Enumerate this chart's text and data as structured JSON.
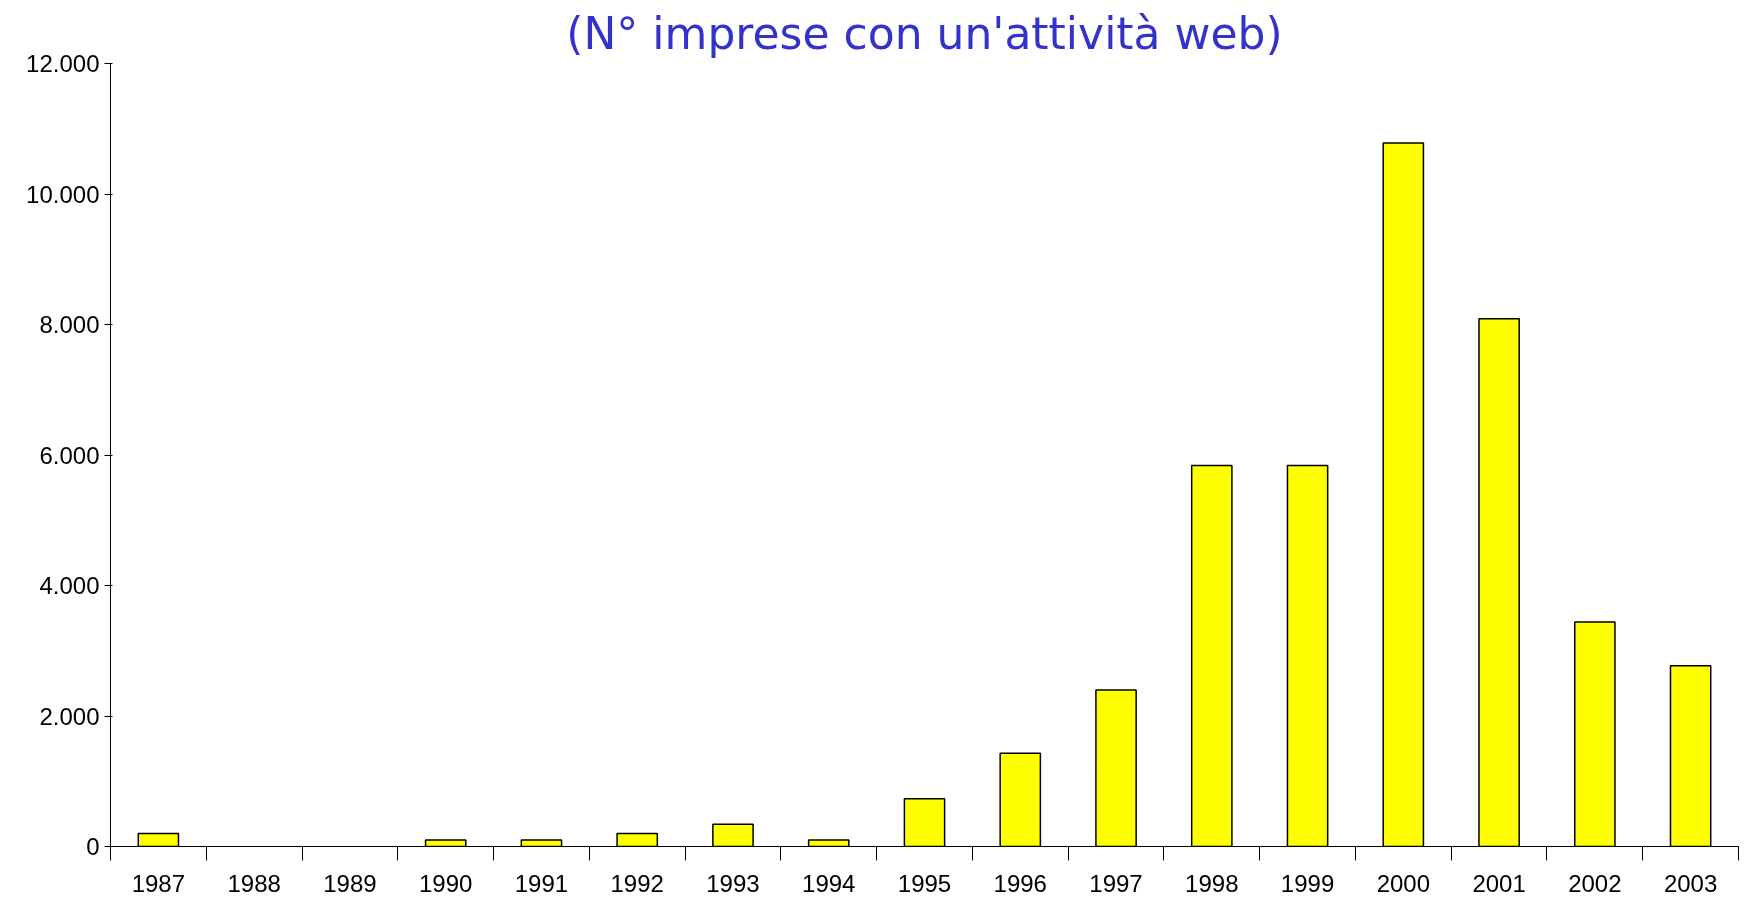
{
  "chart_data": {
    "type": "bar",
    "title": "(N° imprese con un'attività web)",
    "categories": [
      "1987",
      "1988",
      "1989",
      "1990",
      "1991",
      "1992",
      "1993",
      "1994",
      "1995",
      "1996",
      "1997",
      "1998",
      "1999",
      "2000",
      "2001",
      "2002",
      "2003"
    ],
    "values": [
      200,
      0,
      0,
      100,
      100,
      200,
      340,
      100,
      730,
      1430,
      2400,
      5840,
      5840,
      10780,
      8090,
      3440,
      2770
    ],
    "color": "#ffff00",
    "ylim": [
      0,
      12000
    ],
    "yticks": [
      0,
      {
        "value": 2000,
        "label": "2.000"
      },
      {
        "value": 4000,
        "label": "4.000"
      },
      {
        "value": 6000,
        "label": "6.000"
      },
      {
        "value": 8000,
        "label": "8.000"
      },
      {
        "value": 10000,
        "label": "10.000"
      },
      {
        "value": 12000,
        "label": "12.000"
      }
    ],
    "grid": false
  }
}
